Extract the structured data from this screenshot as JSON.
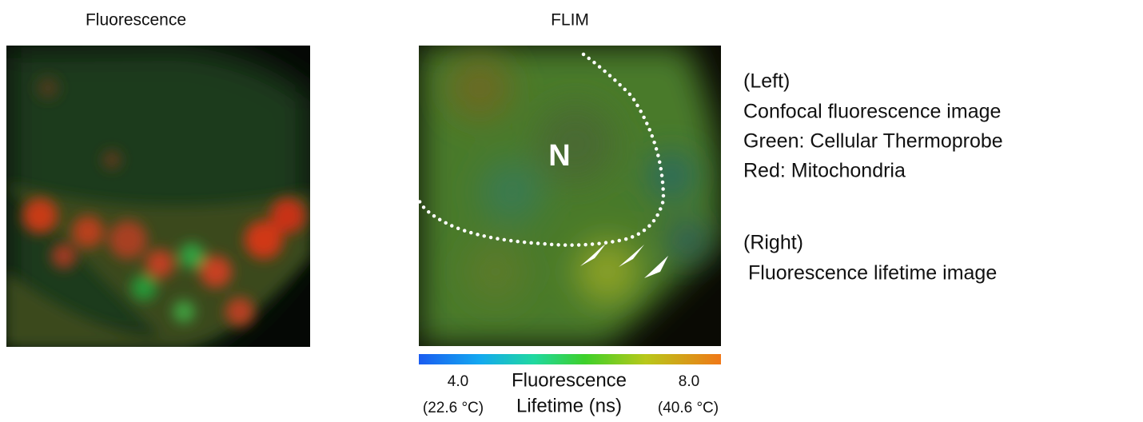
{
  "panels": {
    "left": {
      "title": "Fluorescence"
    },
    "right": {
      "title": "FLIM",
      "nucleus_label": "N",
      "colorbar": {
        "min": "4.0",
        "min_temp": "(22.6 °C)",
        "label_line1": "Fluorescence",
        "label_line2": "Lifetime (ns)",
        "max": "8.0",
        "max_temp": "(40.6 °C)"
      }
    }
  },
  "caption": {
    "left_heading": "(Left)",
    "left_lines": [
      "Confocal fluorescence image",
      "Green: Cellular Thermoprobe",
      "Red: Mitochondria"
    ],
    "right_heading": "(Right)",
    "right_lines": [
      "Fluorescence lifetime image"
    ]
  }
}
